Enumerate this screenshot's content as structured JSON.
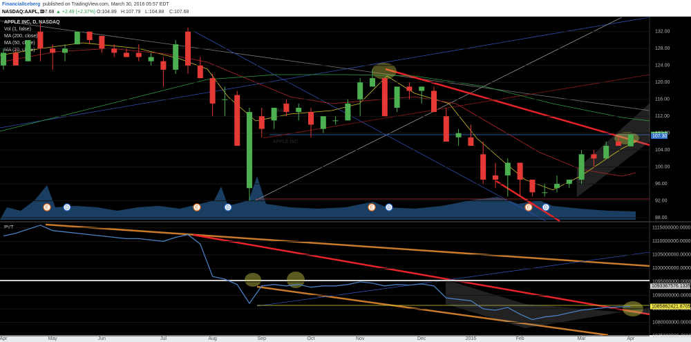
{
  "header": {
    "author": "FinancialIceberg",
    "published": "published on TradingView.com, March 30, 2016 05:57 EDT",
    "symbol": "NASDAQ:AAPL, D",
    "last": "107.68",
    "change": "▲ +2.49 (+2.37%)",
    "open": "O:104.89",
    "high": "H:107.79",
    "low": "L:104.88",
    "close": "C:107.68"
  },
  "legend": [
    "APPLE INC, D, NASDAQ",
    "Vol (1, false)",
    "MA (200, close)",
    "MA (50, close)",
    "MA (20, close)"
  ],
  "watermark": {
    "symbol": "AAPL",
    "name": "APPLE INC"
  },
  "events": [
    "E",
    "D",
    "E",
    "D",
    "E",
    "D",
    "E",
    "D"
  ],
  "price_labels": [
    {
      "value": 107.68,
      "label": "107.68",
      "color": "#4caf50"
    },
    {
      "value": 107.3,
      "label": "107.30",
      "color": "#2f6fc9"
    }
  ],
  "chart_data": [
    {
      "type": "candlestick",
      "categories": [
        "Apr",
        null,
        null,
        null,
        "May",
        null,
        null,
        null,
        "Jun",
        null,
        null,
        null,
        null,
        "Jul",
        null,
        null,
        null,
        "Aug",
        null,
        null,
        null,
        "Sep",
        null,
        null,
        null,
        "Oct",
        null,
        null,
        null,
        "Nov",
        null,
        null,
        null,
        null,
        "Dec",
        null,
        null,
        null,
        "2016",
        null,
        null,
        null,
        "Feb",
        null,
        null,
        null,
        null,
        "Mar",
        null,
        null,
        null,
        "Apr"
      ],
      "open": [
        124,
        127,
        125,
        132,
        128,
        127,
        129,
        132,
        131,
        128,
        127,
        127,
        125,
        125,
        123,
        132,
        124,
        121,
        116,
        117,
        95,
        112,
        111,
        115,
        113,
        113,
        109,
        111,
        111,
        116,
        119,
        121,
        114,
        119,
        118,
        118,
        112,
        107,
        107,
        103,
        98,
        98,
        101,
        97,
        94,
        95,
        96,
        97,
        103,
        102,
        106,
        104.89
      ],
      "high": [
        128,
        128,
        130,
        134,
        129,
        129,
        132,
        132,
        131,
        129,
        128,
        129,
        127,
        126,
        130,
        133,
        126,
        122,
        119,
        118,
        114,
        114,
        114,
        116,
        115,
        114,
        112,
        112,
        116,
        121,
        123,
        121,
        119,
        120,
        119,
        119,
        114,
        109,
        110,
        106,
        101,
        102,
        101,
        97,
        96,
        98,
        97,
        104,
        104,
        106,
        107,
        107.79
      ],
      "low": [
        123,
        124,
        125,
        125,
        123,
        125,
        129,
        129,
        127,
        126,
        126,
        125,
        124,
        119,
        122,
        122,
        121,
        112,
        112,
        105,
        92,
        107,
        109,
        112,
        111,
        107,
        108,
        110,
        111,
        112,
        119,
        112,
        113,
        116,
        115,
        113,
        106,
        105,
        105,
        96,
        95,
        93,
        93,
        93,
        93,
        94,
        95,
        96,
        100,
        102,
        105,
        104.88
      ],
      "close": [
        127,
        124,
        130,
        128,
        127,
        128,
        132,
        130,
        128,
        127,
        126,
        126,
        126,
        123,
        129,
        124,
        121,
        115,
        116,
        105,
        113,
        109,
        114,
        113,
        114,
        110,
        112,
        111,
        115,
        120,
        121,
        112,
        119,
        118,
        119,
        113,
        106,
        108,
        105,
        97,
        97,
        101,
        97,
        94,
        94,
        96,
        97,
        103,
        102,
        105,
        105,
        107.68
      ],
      "up_color": "#4caf50",
      "down_color": "#e53935",
      "ylim": [
        87.2,
        135.4
      ],
      "yticks": [
        {
          "value": 88,
          "label": "88.00"
        },
        {
          "value": 92,
          "label": "92.00"
        },
        {
          "value": 96,
          "label": "96.00"
        },
        {
          "value": 100,
          "label": "100.00"
        },
        {
          "value": 104,
          "label": "104.00"
        },
        {
          "value": 108,
          "label": "108.00"
        },
        {
          "value": 112,
          "label": "112.00"
        },
        {
          "value": 116,
          "label": "116.00"
        },
        {
          "value": 120,
          "label": "120.00"
        },
        {
          "value": 124,
          "label": "124.00"
        },
        {
          "value": 128,
          "label": "128.00"
        },
        {
          "value": 132,
          "label": "132.00"
        }
      ]
    },
    {
      "type": "line",
      "title": "PVT",
      "color": "#4a7fc1",
      "values": [
        1112000000,
        1113000000,
        1114500000,
        1116000000,
        1114000000,
        1113500000,
        1113000000,
        1112500000,
        1112000000,
        1111500000,
        1111000000,
        1111000000,
        1110500000,
        1110000000,
        1111500000,
        1112500000,
        1109000000,
        1097000000,
        1096000000,
        1094000000,
        1087000000,
        1093500000,
        1094000000,
        1093500000,
        1094000000,
        1093000000,
        1093500000,
        1093500000,
        1094000000,
        1095000000,
        1094500000,
        1093500000,
        1094000000,
        1093800000,
        1094200000,
        1093500000,
        1089000000,
        1088500000,
        1088000000,
        1085000000,
        1084500000,
        1085500000,
        1083000000,
        1081000000,
        1082000000,
        1082500000,
        1083500000,
        1084500000,
        1085000000,
        1085500000,
        1085700000,
        1085862421.8705
      ],
      "ylim": [
        1075000000,
        1117000000
      ],
      "yticks": [
        {
          "value": 1075000000,
          "label": "1075000000.0000"
        },
        {
          "value": 1080000000,
          "label": "1080000000.0000"
        },
        {
          "value": 1085000000,
          "label": "1085000000.0000"
        },
        {
          "value": 1090000000,
          "label": "1090000000.0000"
        },
        {
          "value": 1095000000,
          "label": "1095000000.0000"
        },
        {
          "value": 1100000000,
          "label": "1100000000.0000"
        },
        {
          "value": 1105000000,
          "label": "1105000000.0000"
        },
        {
          "value": 1110000000,
          "label": "1110000000.0000"
        },
        {
          "value": 1115000000,
          "label": "1115000000.0000"
        }
      ],
      "level_labels": [
        {
          "value": 1093367576.1335,
          "label": "1093367576.1335",
          "color": "#cfcfcf"
        },
        {
          "value": 1085862421.8705,
          "label": "1085862421.8705",
          "color": "#f5e94a"
        }
      ]
    }
  ]
}
